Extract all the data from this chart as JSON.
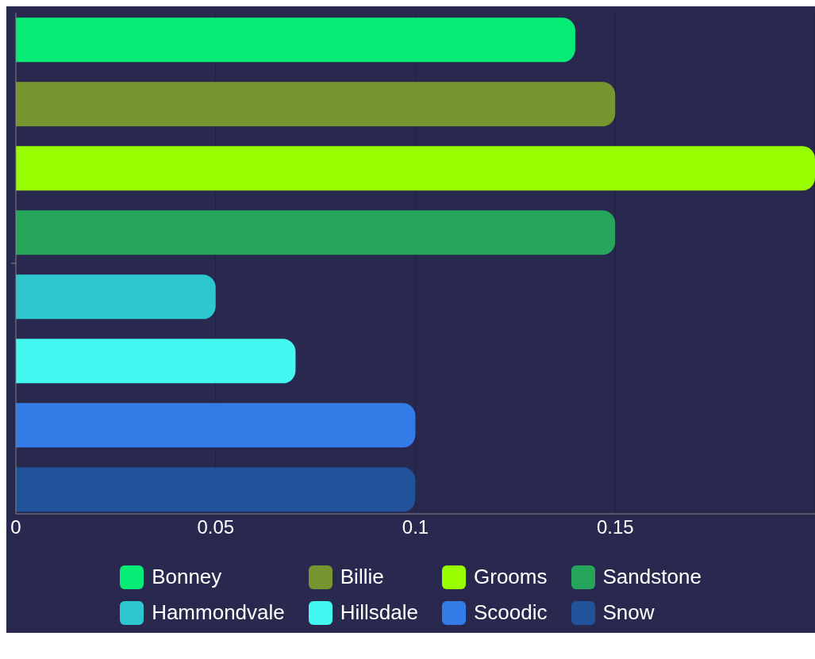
{
  "chart_data": {
    "type": "bar",
    "orientation": "horizontal",
    "categories": [
      null
    ],
    "series": [
      {
        "name": "Bonney",
        "color": "#07eb77",
        "values": [
          0.14
        ]
      },
      {
        "name": "Billie",
        "color": "#78962f",
        "values": [
          0.15
        ]
      },
      {
        "name": "Grooms",
        "color": "#99ff00",
        "values": [
          0.2
        ]
      },
      {
        "name": "Sandstone",
        "color": "#26a65b",
        "values": [
          0.15
        ]
      },
      {
        "name": "Hammondvale",
        "color": "#2fc7cf",
        "values": [
          0.05
        ]
      },
      {
        "name": "Hillsdale",
        "color": "#44f7f0",
        "values": [
          0.07
        ]
      },
      {
        "name": "Scoodic",
        "color": "#337be6",
        "values": [
          0.1
        ]
      },
      {
        "name": "Snow",
        "color": "#20539a",
        "values": [
          0.1
        ]
      }
    ],
    "xlim": [
      0,
      0.2
    ],
    "xticks": [
      0,
      0.05,
      0.1,
      0.15,
      {
        "value": 0.2,
        "label": null
      }
    ],
    "grid": "x",
    "legend": "bottom",
    "tick_labels": "x"
  }
}
